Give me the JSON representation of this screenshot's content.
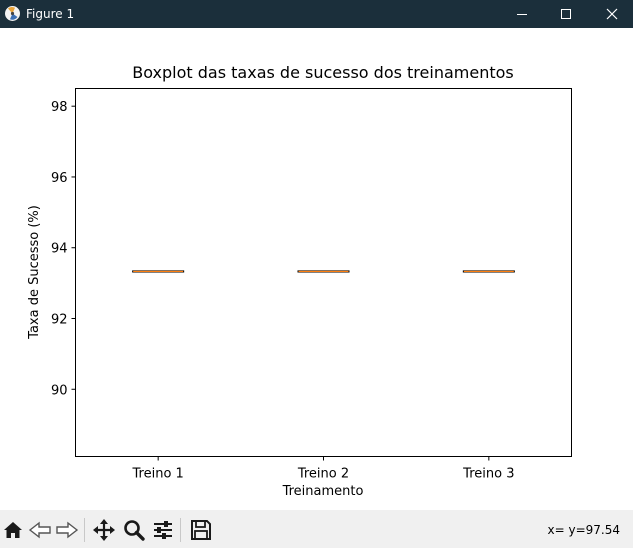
{
  "window": {
    "title": "Figure 1",
    "icons": [
      "matplotlib-icon",
      "minimize-icon",
      "maximize-icon",
      "close-icon"
    ]
  },
  "toolbar": {
    "items": [
      "home-icon",
      "back-icon",
      "forward-icon",
      "pan-icon",
      "zoom-icon",
      "configure-subplots-icon",
      "save-icon"
    ],
    "coord_readout": "x= y=97.54"
  },
  "chart_data": {
    "type": "boxplot",
    "title": "Boxplot das taxas de sucesso dos treinamentos",
    "xlabel": "Treinamento",
    "ylabel": "Taxa de Sucesso (%)",
    "categories": [
      "Treino 1",
      "Treino 2",
      "Treino 3"
    ],
    "values": [
      93.33,
      93.33,
      93.33
    ],
    "ylim": [
      88.1,
      98.5
    ],
    "yticks": [
      90,
      92,
      94,
      96,
      98
    ],
    "ytick_labels": [
      "90",
      "92",
      "94",
      "96",
      "98"
    ],
    "grid": false,
    "colors": {
      "median": "#ff7f0e",
      "box": "#000000"
    }
  }
}
